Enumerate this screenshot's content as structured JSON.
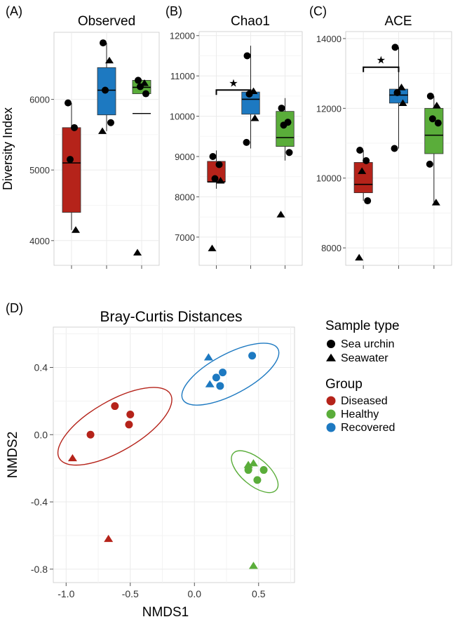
{
  "colors": {
    "Diseased": "#b5231a",
    "Healthy": "#5aad3a",
    "Recovered": "#1d79c1",
    "panel_bg": "#ffffff",
    "grid": "#ebebeb",
    "ink": "#000000"
  },
  "panel_labels": [
    "(A)",
    "(B)",
    "(C)",
    "(D)"
  ],
  "shared_ylabel": "Diversity Index",
  "chart_data": [
    {
      "type": "box",
      "panel": "(A)",
      "title": "Observed",
      "ylabel": "Diversity Index",
      "ylim": [
        3650,
        6950
      ],
      "yticks": [
        4000,
        5000,
        6000
      ],
      "groups": [
        "Diseased",
        "Recovered",
        "Healthy"
      ],
      "boxes": [
        {
          "group": "Diseased",
          "q1": 4400,
          "median": 5100,
          "q3": 5600,
          "whisker_low": 4150,
          "whisker_high": 5950
        },
        {
          "group": "Recovered",
          "q1": 5780,
          "median": 6130,
          "q3": 6450,
          "whisker_low": 5550,
          "whisker_high": 6800
        },
        {
          "group": "Healthy",
          "q1": 6080,
          "median": 6170,
          "q3": 6270,
          "whisker_low": 6080,
          "whisker_high": 6280
        }
      ],
      "extra_lines": [
        {
          "group": "Healthy",
          "value": 5800
        }
      ],
      "points": [
        {
          "group": "Diseased",
          "shape": "circle",
          "y": 5950
        },
        {
          "group": "Diseased",
          "shape": "circle",
          "y": 5600
        },
        {
          "group": "Diseased",
          "shape": "circle",
          "y": 5150
        },
        {
          "group": "Diseased",
          "shape": "triangle",
          "y": 4150
        },
        {
          "group": "Recovered",
          "shape": "circle",
          "y": 6800
        },
        {
          "group": "Recovered",
          "shape": "triangle",
          "y": 6550
        },
        {
          "group": "Recovered",
          "shape": "circle",
          "y": 6130
        },
        {
          "group": "Recovered",
          "shape": "circle",
          "y": 5670
        },
        {
          "group": "Recovered",
          "shape": "triangle",
          "y": 5550
        },
        {
          "group": "Healthy",
          "shape": "circle",
          "y": 6270
        },
        {
          "group": "Healthy",
          "shape": "triangle",
          "y": 6230
        },
        {
          "group": "Healthy",
          "shape": "circle",
          "y": 6180
        },
        {
          "group": "Healthy",
          "shape": "circle",
          "y": 6080
        },
        {
          "group": "Healthy",
          "shape": "triangle",
          "y": 3830
        }
      ],
      "significance": null
    },
    {
      "type": "box",
      "panel": "(B)",
      "title": "Chao1",
      "ylim": [
        6300,
        12100
      ],
      "yticks": [
        7000,
        8000,
        9000,
        10000,
        11000,
        12000
      ],
      "groups": [
        "Diseased",
        "Recovered",
        "Healthy"
      ],
      "boxes": [
        {
          "group": "Diseased",
          "q1": 8370,
          "median": 8370,
          "q3": 8880,
          "whisker_low": 8200,
          "whisker_high": 9150
        },
        {
          "group": "Recovered",
          "q1": 10050,
          "median": 10420,
          "q3": 10600,
          "whisker_low": 9200,
          "whisker_high": 11750
        },
        {
          "group": "Healthy",
          "q1": 9250,
          "median": 9470,
          "q3": 10120,
          "whisker_low": 8900,
          "whisker_high": 10450
        }
      ],
      "points": [
        {
          "group": "Diseased",
          "shape": "circle",
          "y": 9000
        },
        {
          "group": "Diseased",
          "shape": "circle",
          "y": 8800
        },
        {
          "group": "Diseased",
          "shape": "circle",
          "y": 8450
        },
        {
          "group": "Diseased",
          "shape": "triangle",
          "y": 8400
        },
        {
          "group": "Diseased",
          "shape": "triangle",
          "y": 6720
        },
        {
          "group": "Recovered",
          "shape": "circle",
          "y": 11500
        },
        {
          "group": "Recovered",
          "shape": "triangle",
          "y": 10620
        },
        {
          "group": "Recovered",
          "shape": "circle",
          "y": 10550
        },
        {
          "group": "Recovered",
          "shape": "triangle",
          "y": 9950
        },
        {
          "group": "Recovered",
          "shape": "circle",
          "y": 9350
        },
        {
          "group": "Healthy",
          "shape": "circle",
          "y": 10200
        },
        {
          "group": "Healthy",
          "shape": "circle",
          "y": 9850
        },
        {
          "group": "Healthy",
          "shape": "circle",
          "y": 9780
        },
        {
          "group": "Healthy",
          "shape": "circle",
          "y": 9100
        },
        {
          "group": "Healthy",
          "shape": "triangle",
          "y": 7560
        }
      ],
      "significance": {
        "from": "Diseased",
        "to": "Recovered",
        "y": 10650,
        "label": "★"
      }
    },
    {
      "type": "box",
      "panel": "(C)",
      "title": "ACE",
      "ylim": [
        7500,
        14200
      ],
      "yticks": [
        8000,
        10000,
        12000,
        14000
      ],
      "groups": [
        "Diseased",
        "Recovered",
        "Healthy"
      ],
      "boxes": [
        {
          "group": "Diseased",
          "q1": 9580,
          "median": 9820,
          "q3": 10450,
          "whisker_low": 9350,
          "whisker_high": 10800
        },
        {
          "group": "Recovered",
          "q1": 12150,
          "median": 12380,
          "q3": 12550,
          "whisker_low": 10850,
          "whisker_high": 13750
        },
        {
          "group": "Healthy",
          "q1": 10700,
          "median": 11230,
          "q3": 12000,
          "whisker_low": 9300,
          "whisker_high": 12350
        }
      ],
      "points": [
        {
          "group": "Diseased",
          "shape": "circle",
          "y": 10800
        },
        {
          "group": "Diseased",
          "shape": "circle",
          "y": 10500
        },
        {
          "group": "Diseased",
          "shape": "triangle",
          "y": 10200
        },
        {
          "group": "Diseased",
          "shape": "circle",
          "y": 9350
        },
        {
          "group": "Diseased",
          "shape": "triangle",
          "y": 7720
        },
        {
          "group": "Recovered",
          "shape": "circle",
          "y": 13750
        },
        {
          "group": "Recovered",
          "shape": "triangle",
          "y": 12600
        },
        {
          "group": "Recovered",
          "shape": "circle",
          "y": 12450
        },
        {
          "group": "Recovered",
          "shape": "triangle",
          "y": 12150
        },
        {
          "group": "Recovered",
          "shape": "circle",
          "y": 10850
        },
        {
          "group": "Healthy",
          "shape": "circle",
          "y": 12350
        },
        {
          "group": "Healthy",
          "shape": "triangle",
          "y": 12080
        },
        {
          "group": "Healthy",
          "shape": "circle",
          "y": 11700
        },
        {
          "group": "Healthy",
          "shape": "circle",
          "y": 11580
        },
        {
          "group": "Healthy",
          "shape": "circle",
          "y": 10400
        },
        {
          "group": "Healthy",
          "shape": "triangle",
          "y": 9300
        }
      ],
      "significance": {
        "from": "Diseased",
        "to": "Recovered",
        "y": 13180,
        "label": "★"
      }
    },
    {
      "type": "scatter",
      "panel": "(D)",
      "title": "Bray-Curtis Distances",
      "xlabel": "NMDS1",
      "ylabel": "NMDS2",
      "xlim": [
        -1.1,
        0.78
      ],
      "ylim": [
        -0.88,
        0.64
      ],
      "xticks": [
        "-1.0",
        "-0.5",
        "0.0",
        "0.5"
      ],
      "yticks": [
        "-0.8",
        "-0.4",
        "0.0",
        "0.4"
      ],
      "points": [
        {
          "group": "Diseased",
          "shape": "circle",
          "x": -0.62,
          "y": 0.17
        },
        {
          "group": "Diseased",
          "shape": "circle",
          "x": -0.5,
          "y": 0.12
        },
        {
          "group": "Diseased",
          "shape": "circle",
          "x": -0.51,
          "y": 0.06
        },
        {
          "group": "Diseased",
          "shape": "circle",
          "x": -0.81,
          "y": 0.0
        },
        {
          "group": "Diseased",
          "shape": "triangle",
          "x": -0.95,
          "y": -0.14
        },
        {
          "group": "Diseased",
          "shape": "triangle",
          "x": -0.67,
          "y": -0.62
        },
        {
          "group": "Recovered",
          "shape": "triangle",
          "x": 0.11,
          "y": 0.46
        },
        {
          "group": "Recovered",
          "shape": "circle",
          "x": 0.45,
          "y": 0.47
        },
        {
          "group": "Recovered",
          "shape": "circle",
          "x": 0.22,
          "y": 0.37
        },
        {
          "group": "Recovered",
          "shape": "circle",
          "x": 0.17,
          "y": 0.34
        },
        {
          "group": "Recovered",
          "shape": "triangle",
          "x": 0.12,
          "y": 0.3
        },
        {
          "group": "Recovered",
          "shape": "circle",
          "x": 0.2,
          "y": 0.29
        },
        {
          "group": "Healthy",
          "shape": "triangle",
          "x": 0.42,
          "y": -0.18
        },
        {
          "group": "Healthy",
          "shape": "triangle",
          "x": 0.46,
          "y": -0.17
        },
        {
          "group": "Healthy",
          "shape": "circle",
          "x": 0.42,
          "y": -0.21
        },
        {
          "group": "Healthy",
          "shape": "circle",
          "x": 0.54,
          "y": -0.21
        },
        {
          "group": "Healthy",
          "shape": "circle",
          "x": 0.49,
          "y": -0.27
        },
        {
          "group": "Healthy",
          "shape": "triangle",
          "x": 0.46,
          "y": -0.78
        }
      ],
      "ellipses": [
        {
          "group": "Diseased",
          "cx": -0.62,
          "cy": 0.05,
          "rx": 0.5,
          "ry": 0.15,
          "angle_deg": 30
        },
        {
          "group": "Recovered",
          "cx": 0.28,
          "cy": 0.36,
          "rx": 0.42,
          "ry": 0.12,
          "angle_deg": 28
        },
        {
          "group": "Healthy",
          "cx": 0.47,
          "cy": -0.22,
          "rx": 0.22,
          "ry": 0.08,
          "angle_deg": -40
        }
      ],
      "legend": {
        "placement": "right",
        "shape_title": "Sample type",
        "shape_items": [
          {
            "shape": "circle",
            "label": "Sea urchin"
          },
          {
            "shape": "triangle",
            "label": "Seawater"
          }
        ],
        "color_title": "Group",
        "color_items": [
          {
            "group": "Diseased",
            "label": "Diseased"
          },
          {
            "group": "Healthy",
            "label": "Healthy"
          },
          {
            "group": "Recovered",
            "label": "Recovered"
          }
        ]
      }
    }
  ]
}
